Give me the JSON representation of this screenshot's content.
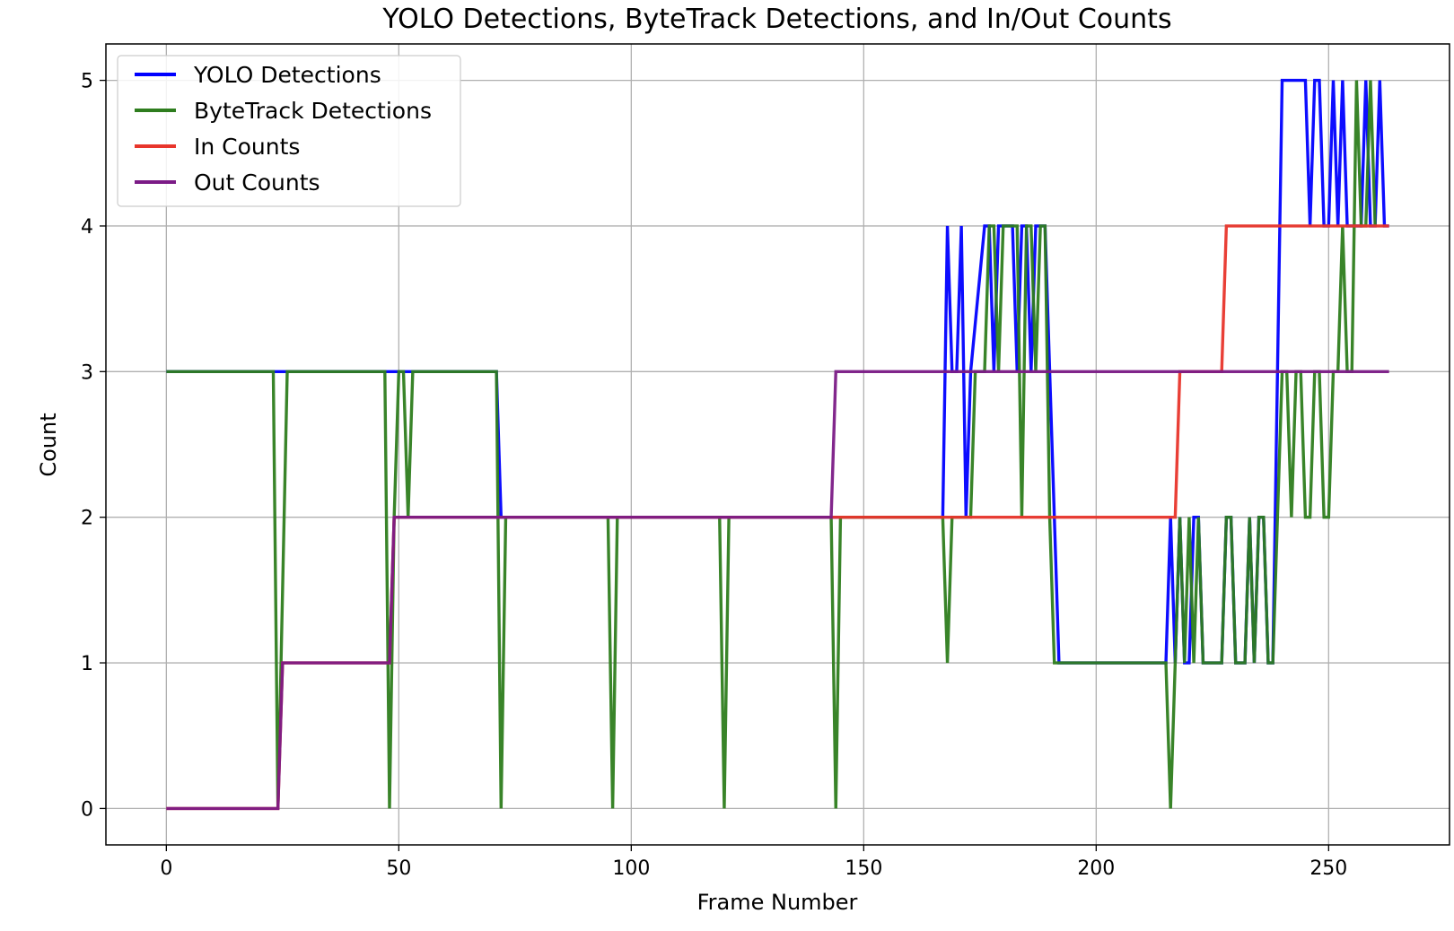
{
  "chart_data": {
    "type": "line",
    "title": "YOLO Detections, ByteTrack Detections, and In/Out Counts",
    "xlabel": "Frame Number",
    "ylabel": "Count",
    "xlim": [
      -13,
      276
    ],
    "ylim": [
      -0.25,
      5.25
    ],
    "xticks": [
      0,
      50,
      100,
      150,
      200,
      250
    ],
    "yticks": [
      0,
      1,
      2,
      3,
      4,
      5
    ],
    "grid": true,
    "legend_position": "top-left",
    "series": [
      {
        "name": "YOLO Detections",
        "color": "#0000ff",
        "points": [
          [
            0,
            3
          ],
          [
            53,
            3
          ],
          [
            54,
            3
          ],
          [
            71,
            3
          ],
          [
            72,
            2
          ],
          [
            167,
            2
          ],
          [
            168,
            4
          ],
          [
            169,
            3
          ],
          [
            170,
            3
          ],
          [
            171,
            4
          ],
          [
            172,
            2
          ],
          [
            173,
            3
          ],
          [
            176,
            4
          ],
          [
            177,
            4
          ],
          [
            178,
            3
          ],
          [
            179,
            4
          ],
          [
            182,
            4
          ],
          [
            183,
            3
          ],
          [
            184,
            4
          ],
          [
            185,
            4
          ],
          [
            186,
            3
          ],
          [
            187,
            4
          ],
          [
            189,
            4
          ],
          [
            190,
            3
          ],
          [
            191,
            2
          ],
          [
            192,
            1
          ],
          [
            215,
            1
          ],
          [
            216,
            2
          ],
          [
            217,
            1
          ],
          [
            218,
            2
          ],
          [
            219,
            1
          ],
          [
            220,
            1
          ],
          [
            221,
            2
          ],
          [
            222,
            2
          ],
          [
            223,
            1
          ],
          [
            227,
            1
          ],
          [
            228,
            2
          ],
          [
            229,
            2
          ],
          [
            230,
            1
          ],
          [
            232,
            1
          ],
          [
            233,
            2
          ],
          [
            234,
            1
          ],
          [
            235,
            2
          ],
          [
            236,
            2
          ],
          [
            237,
            1
          ],
          [
            238,
            1
          ],
          [
            239,
            3
          ],
          [
            240,
            5
          ],
          [
            245,
            5
          ],
          [
            246,
            4
          ],
          [
            247,
            5
          ],
          [
            248,
            5
          ],
          [
            249,
            4
          ],
          [
            250,
            4
          ],
          [
            251,
            5
          ],
          [
            252,
            4
          ],
          [
            253,
            5
          ],
          [
            254,
            4
          ],
          [
            257,
            4
          ],
          [
            258,
            5
          ],
          [
            259,
            4
          ],
          [
            260,
            4
          ],
          [
            261,
            5
          ],
          [
            262,
            4
          ],
          [
            263,
            4
          ]
        ]
      },
      {
        "name": "ByteTrack Detections",
        "color": "#2e7d1e",
        "points": [
          [
            0,
            3
          ],
          [
            23,
            3
          ],
          [
            24,
            0
          ],
          [
            26,
            3
          ],
          [
            47,
            3
          ],
          [
            48,
            0
          ],
          [
            49,
            2
          ],
          [
            50,
            3
          ],
          [
            51,
            3
          ],
          [
            52,
            2
          ],
          [
            53,
            3
          ],
          [
            71,
            3
          ],
          [
            72,
            0
          ],
          [
            73,
            2
          ],
          [
            95,
            2
          ],
          [
            96,
            0
          ],
          [
            97,
            2
          ],
          [
            119,
            2
          ],
          [
            120,
            0
          ],
          [
            121,
            2
          ],
          [
            143,
            2
          ],
          [
            144,
            0
          ],
          [
            145,
            2
          ],
          [
            167,
            2
          ],
          [
            168,
            1
          ],
          [
            169,
            2
          ],
          [
            173,
            2
          ],
          [
            174,
            3
          ],
          [
            176,
            3
          ],
          [
            177,
            4
          ],
          [
            178,
            4
          ],
          [
            179,
            3
          ],
          [
            180,
            4
          ],
          [
            183,
            4
          ],
          [
            184,
            2
          ],
          [
            185,
            4
          ],
          [
            186,
            4
          ],
          [
            187,
            3
          ],
          [
            188,
            4
          ],
          [
            189,
            4
          ],
          [
            190,
            2
          ],
          [
            191,
            1
          ],
          [
            215,
            1
          ],
          [
            216,
            0
          ],
          [
            217,
            1
          ],
          [
            218,
            2
          ],
          [
            219,
            1
          ],
          [
            220,
            2
          ],
          [
            221,
            1
          ],
          [
            222,
            2
          ],
          [
            223,
            1
          ],
          [
            227,
            1
          ],
          [
            228,
            2
          ],
          [
            229,
            2
          ],
          [
            230,
            1
          ],
          [
            232,
            1
          ],
          [
            233,
            2
          ],
          [
            234,
            1
          ],
          [
            235,
            2
          ],
          [
            236,
            2
          ],
          [
            237,
            1
          ],
          [
            238,
            1
          ],
          [
            239,
            2
          ],
          [
            240,
            3
          ],
          [
            241,
            3
          ],
          [
            242,
            2
          ],
          [
            243,
            3
          ],
          [
            244,
            3
          ],
          [
            245,
            2
          ],
          [
            246,
            2
          ],
          [
            247,
            3
          ],
          [
            248,
            3
          ],
          [
            249,
            2
          ],
          [
            250,
            2
          ],
          [
            251,
            3
          ],
          [
            252,
            3
          ],
          [
            253,
            4
          ],
          [
            254,
            3
          ],
          [
            255,
            3
          ],
          [
            256,
            5
          ],
          [
            257,
            4
          ],
          [
            258,
            4
          ],
          [
            259,
            5
          ],
          [
            260,
            4
          ]
        ]
      },
      {
        "name": "In Counts",
        "color": "#e8352b",
        "points": [
          [
            0,
            0
          ],
          [
            24,
            0
          ],
          [
            25,
            1
          ],
          [
            48,
            1
          ],
          [
            49,
            2
          ],
          [
            217,
            2
          ],
          [
            218,
            3
          ],
          [
            227,
            3
          ],
          [
            228,
            4
          ],
          [
            263,
            4
          ]
        ]
      },
      {
        "name": "Out Counts",
        "color": "#7b1b86",
        "points": [
          [
            0,
            0
          ],
          [
            24,
            0
          ],
          [
            25,
            1
          ],
          [
            48,
            1
          ],
          [
            49,
            2
          ],
          [
            143,
            2
          ],
          [
            144,
            3
          ],
          [
            263,
            3
          ]
        ]
      }
    ]
  }
}
